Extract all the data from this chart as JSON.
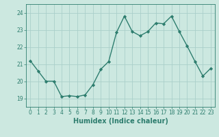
{
  "x": [
    0,
    1,
    2,
    3,
    4,
    5,
    6,
    7,
    8,
    9,
    10,
    11,
    12,
    13,
    14,
    15,
    16,
    17,
    18,
    19,
    20,
    21,
    22,
    23
  ],
  "y": [
    21.2,
    20.6,
    20.0,
    20.0,
    19.1,
    19.15,
    19.1,
    19.2,
    19.8,
    20.7,
    21.15,
    22.85,
    23.8,
    22.9,
    22.65,
    22.9,
    23.4,
    23.35,
    23.8,
    22.9,
    22.05,
    21.15,
    20.3,
    20.75
  ],
  "line_color": "#2d7d6e",
  "marker": "D",
  "marker_size": 2.2,
  "bg_color": "#cce8e0",
  "grid_color": "#aacfca",
  "xlabel": "Humidex (Indice chaleur)",
  "ylim": [
    18.5,
    24.5
  ],
  "xlim": [
    -0.5,
    23.5
  ],
  "yticks": [
    19,
    20,
    21,
    22,
    23,
    24
  ],
  "xticks": [
    0,
    1,
    2,
    3,
    4,
    5,
    6,
    7,
    8,
    9,
    10,
    11,
    12,
    13,
    14,
    15,
    16,
    17,
    18,
    19,
    20,
    21,
    22,
    23
  ],
  "tick_color": "#2d7d6e",
  "tick_fontsize": 5.5,
  "xlabel_fontsize": 7.0,
  "line_width": 1.0
}
